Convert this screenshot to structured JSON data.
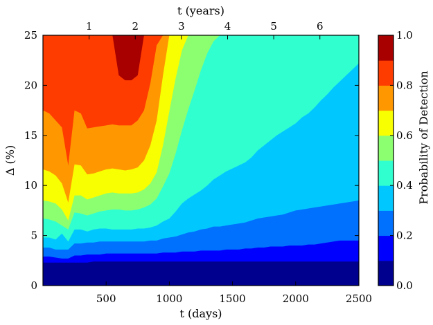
{
  "chart_data": {
    "type": "heatmap",
    "x": {
      "label": "t (days)",
      "range": [
        0,
        2500
      ],
      "ticks": [
        500,
        1000,
        1500,
        2000,
        2500
      ],
      "tick_labels": [
        "500",
        "1000",
        "1500",
        "2000",
        "2500"
      ]
    },
    "x_top": {
      "label": "t (years)",
      "ticks": [
        1,
        2,
        3,
        4,
        5,
        6
      ],
      "tick_labels": [
        "1",
        "2",
        "3",
        "4",
        "5",
        "6"
      ],
      "days_per_year": 365.25
    },
    "y": {
      "label": "Δ (%)",
      "range": [
        0,
        25
      ],
      "ticks": [
        0,
        5,
        10,
        15,
        20,
        25
      ],
      "tick_labels": [
        "0",
        "5",
        "10",
        "15",
        "20",
        "25"
      ]
    },
    "colorbar": {
      "label": "Probability of Detection",
      "range": [
        0.0,
        1.0
      ],
      "ticks": [
        0.0,
        0.2,
        0.4,
        0.6,
        0.8,
        1.0
      ],
      "tick_labels": [
        "0.0",
        "0.2",
        "0.4",
        "0.6",
        "0.8",
        "1.0"
      ],
      "levels": [
        {
          "lo": 0.0,
          "hi": 0.1,
          "color": "#00008f"
        },
        {
          "lo": 0.1,
          "hi": 0.2,
          "color": "#0000ff"
        },
        {
          "lo": 0.2,
          "hi": 0.3,
          "color": "#0070ff"
        },
        {
          "lo": 0.3,
          "hi": 0.4,
          "color": "#00c8ff"
        },
        {
          "lo": 0.4,
          "hi": 0.5,
          "color": "#30ffd0"
        },
        {
          "lo": 0.5,
          "hi": 0.6,
          "color": "#8cff70"
        },
        {
          "lo": 0.6,
          "hi": 0.7,
          "color": "#f8ff00"
        },
        {
          "lo": 0.7,
          "hi": 0.8,
          "color": "#ff9800"
        },
        {
          "lo": 0.8,
          "hi": 0.9,
          "color": "#ff3c00"
        },
        {
          "lo": 0.9,
          "hi": 1.0,
          "color": "#a80000"
        }
      ]
    },
    "level_boundaries": {
      "t": [
        0,
        50,
        100,
        150,
        200,
        250,
        300,
        350,
        400,
        450,
        500,
        550,
        600,
        650,
        700,
        750,
        800,
        850,
        900,
        950,
        1000,
        1050,
        1100,
        1150,
        1200,
        1250,
        1300,
        1350,
        1400,
        1450,
        1500,
        1550,
        1600,
        1650,
        1700,
        1750,
        1800,
        1850,
        1900,
        1950,
        2000,
        2050,
        2100,
        2150,
        2200,
        2250,
        2300,
        2350,
        2400,
        2450,
        2500
      ],
      "contours": [
        {
          "level": 0.1,
          "delta": [
            2.3,
            2.3,
            2.3,
            2.3,
            2.3,
            2.3,
            2.3,
            2.3,
            2.4,
            2.4,
            2.4,
            2.4,
            2.4,
            2.4,
            2.4,
            2.4,
            2.4,
            2.4,
            2.4,
            2.4,
            2.4,
            2.4,
            2.4,
            2.4,
            2.4,
            2.4,
            2.4,
            2.4,
            2.4,
            2.4,
            2.4,
            2.4,
            2.4,
            2.4,
            2.4,
            2.4,
            2.4,
            2.4,
            2.4,
            2.4,
            2.4,
            2.4,
            2.4,
            2.4,
            2.4,
            2.4,
            2.4,
            2.4,
            2.4,
            2.4,
            2.4
          ]
        },
        {
          "level": 0.2,
          "delta": [
            2.9,
            2.9,
            2.8,
            2.7,
            2.7,
            3.0,
            3.0,
            3.1,
            3.1,
            3.1,
            3.2,
            3.2,
            3.2,
            3.2,
            3.2,
            3.2,
            3.2,
            3.2,
            3.2,
            3.3,
            3.3,
            3.3,
            3.4,
            3.4,
            3.4,
            3.5,
            3.5,
            3.5,
            3.5,
            3.6,
            3.6,
            3.6,
            3.7,
            3.7,
            3.8,
            3.8,
            3.9,
            3.9,
            3.9,
            4.0,
            4.0,
            4.0,
            4.1,
            4.1,
            4.2,
            4.3,
            4.4,
            4.5,
            4.5,
            4.5,
            4.5
          ]
        },
        {
          "level": 0.3,
          "delta": [
            3.8,
            3.8,
            3.6,
            3.6,
            3.6,
            4.2,
            4.2,
            4.3,
            4.3,
            4.4,
            4.4,
            4.4,
            4.4,
            4.4,
            4.4,
            4.4,
            4.4,
            4.5,
            4.5,
            4.7,
            4.8,
            4.9,
            5.1,
            5.3,
            5.4,
            5.6,
            5.7,
            5.9,
            5.9,
            6.0,
            6.1,
            6.2,
            6.3,
            6.5,
            6.7,
            6.8,
            6.9,
            7.0,
            7.1,
            7.3,
            7.5,
            7.6,
            7.7,
            7.8,
            7.9,
            8.0,
            8.1,
            8.2,
            8.3,
            8.4,
            8.5
          ]
        },
        {
          "level": 0.4,
          "delta": [
            4.8,
            4.8,
            4.6,
            5.2,
            4.4,
            5.6,
            5.6,
            5.4,
            5.6,
            5.7,
            5.7,
            5.6,
            5.6,
            5.6,
            5.6,
            5.7,
            5.7,
            5.8,
            6.0,
            6.4,
            6.7,
            7.4,
            8.2,
            8.7,
            9.1,
            9.5,
            10.0,
            10.6,
            11.0,
            11.4,
            11.7,
            12.0,
            12.3,
            12.8,
            13.5,
            14.0,
            14.5,
            15.0,
            15.4,
            15.8,
            16.2,
            16.8,
            17.2,
            17.8,
            18.5,
            19.1,
            19.8,
            20.4,
            21.0,
            21.6,
            22.2
          ]
        },
        {
          "level": 0.5,
          "delta": [
            6.7,
            6.6,
            6.4,
            6.0,
            5.6,
            7.3,
            7.2,
            7.0,
            7.2,
            7.4,
            7.5,
            7.6,
            7.6,
            7.5,
            7.5,
            7.6,
            7.8,
            8.1,
            8.7,
            9.9,
            11.2,
            13.2,
            15.5,
            17.6,
            19.5,
            21.5,
            23.2,
            24.4,
            25.0,
            25.0,
            25.0,
            25.0,
            25.0,
            25.0,
            25.0,
            25.0,
            25.0,
            25.0,
            25.0,
            25.0,
            25.0,
            25.0,
            25.0,
            25.0,
            25.0,
            25.0,
            25.0,
            25.0,
            25.0,
            25.0,
            25.0
          ]
        },
        {
          "level": 0.6,
          "delta": [
            8.5,
            8.4,
            8.2,
            7.6,
            6.5,
            9.0,
            9.0,
            8.6,
            8.8,
            9.0,
            9.2,
            9.3,
            9.2,
            9.2,
            9.2,
            9.3,
            9.6,
            10.2,
            11.3,
            14.0,
            17.4,
            20.7,
            23.5,
            25.0,
            25.0,
            25.0,
            25.0,
            25.0,
            25.0,
            25.0,
            25.0,
            25.0,
            25.0,
            25.0,
            25.0,
            25.0,
            25.0,
            25.0,
            25.0,
            25.0,
            25.0,
            25.0,
            25.0,
            25.0,
            25.0,
            25.0,
            25.0,
            25.0,
            25.0,
            25.0,
            25.0
          ]
        },
        {
          "level": 0.7,
          "delta": [
            11.6,
            11.4,
            11.0,
            10.2,
            8.3,
            12.1,
            12.0,
            11.1,
            11.2,
            11.4,
            11.6,
            11.7,
            11.6,
            11.5,
            11.6,
            11.8,
            12.5,
            14.0,
            16.5,
            21.0,
            25.0,
            25.0,
            25.0,
            25.0,
            25.0,
            25.0,
            25.0,
            25.0,
            25.0,
            25.0,
            25.0,
            25.0,
            25.0,
            25.0,
            25.0,
            25.0,
            25.0,
            25.0,
            25.0,
            25.0,
            25.0,
            25.0,
            25.0,
            25.0,
            25.0,
            25.0,
            25.0,
            25.0,
            25.0,
            25.0,
            25.0
          ]
        },
        {
          "level": 0.8,
          "delta": [
            17.5,
            17.2,
            16.5,
            15.8,
            12.0,
            17.5,
            17.2,
            15.7,
            15.8,
            15.9,
            16.0,
            16.1,
            16.0,
            16.0,
            16.0,
            16.5,
            17.5,
            20.2,
            24.0,
            25.0,
            25.0,
            25.0,
            25.0,
            25.0,
            25.0,
            25.0,
            25.0,
            25.0,
            25.0,
            25.0,
            25.0,
            25.0,
            25.0,
            25.0,
            25.0,
            25.0,
            25.0,
            25.0,
            25.0,
            25.0,
            25.0,
            25.0,
            25.0,
            25.0,
            25.0,
            25.0,
            25.0,
            25.0,
            25.0,
            25.0,
            25.0
          ]
        },
        {
          "level": 0.9,
          "delta": [
            25.0,
            25.0,
            25.0,
            25.0,
            25.0,
            25.0,
            25.0,
            25.0,
            25.0,
            25.0,
            25.0,
            25.0,
            21.0,
            20.5,
            20.5,
            21.0,
            25.0,
            25.0,
            25.0,
            25.0,
            25.0,
            25.0,
            25.0,
            25.0,
            25.0,
            25.0,
            25.0,
            25.0,
            25.0,
            25.0,
            25.0,
            25.0,
            25.0,
            25.0,
            25.0,
            25.0,
            25.0,
            25.0,
            25.0,
            25.0,
            25.0,
            25.0,
            25.0,
            25.0,
            25.0,
            25.0,
            25.0,
            25.0,
            25.0,
            25.0,
            25.0
          ]
        }
      ]
    }
  }
}
